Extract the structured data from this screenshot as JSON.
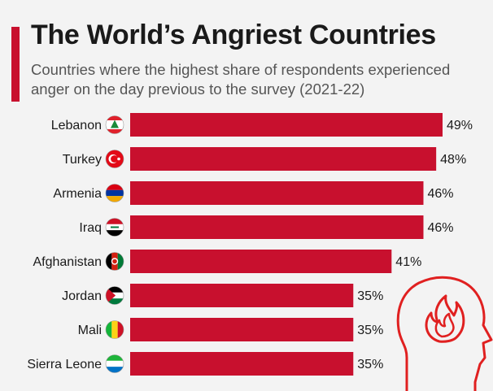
{
  "title": "The World’s Angriest Countries",
  "subtitle": "Countries where the highest share of respondents experienced anger on the day previous to the survey (2021-22)",
  "colors": {
    "bar": "#c8102e",
    "accent": "#c8102e",
    "icon_stroke": "#e02020"
  },
  "chart_data": {
    "type": "bar",
    "orientation": "horizontal",
    "categories": [
      "Lebanon",
      "Turkey",
      "Armenia",
      "Iraq",
      "Afghanistan",
      "Jordan",
      "Mali",
      "Sierra Leone"
    ],
    "values": [
      49,
      48,
      46,
      46,
      41,
      35,
      35,
      35
    ],
    "value_labels": [
      "49%",
      "48%",
      "46%",
      "46%",
      "41%",
      "35%",
      "35%",
      "35%"
    ],
    "flags": [
      "lebanon-flag-icon",
      "turkey-flag-icon",
      "armenia-flag-icon",
      "iraq-flag-icon",
      "afghanistan-flag-icon",
      "jordan-flag-icon",
      "mali-flag-icon",
      "sierra-leone-flag-icon"
    ],
    "xlim": [
      0,
      49
    ],
    "grid": false,
    "legend": "none"
  },
  "decoration": {
    "icon": "angry-head-flame-icon"
  }
}
